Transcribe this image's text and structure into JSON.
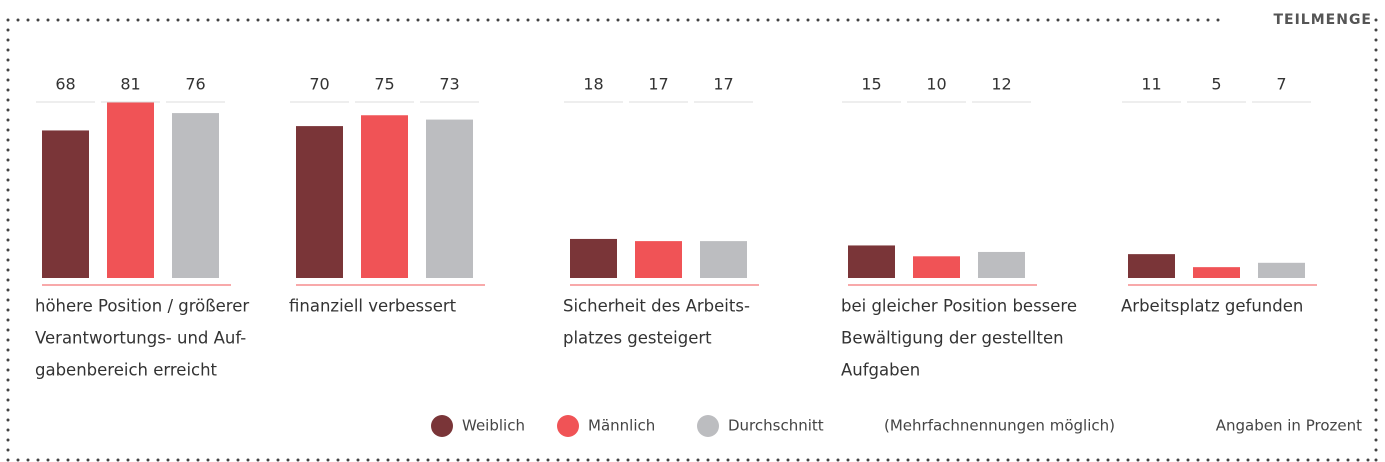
{
  "chart_data": {
    "type": "bar",
    "tag": "TEILMENGE",
    "categories": [
      [
        "höhere Position / größerer",
        "Verantwortungs- und Auf-",
        "gabenbereich erreicht"
      ],
      [
        "finanziell verbessert"
      ],
      [
        "Sicherheit des Arbeits-",
        "platzes gesteigert"
      ],
      [
        "bei gleicher Position bessere",
        "Bewältigung der gestellten",
        "Aufgaben"
      ],
      [
        "Arbeitsplatz gefunden"
      ]
    ],
    "series": [
      {
        "name": "Weiblich",
        "color": "#7a3538",
        "values": [
          68,
          70,
          18,
          15,
          11
        ]
      },
      {
        "name": "Männlich",
        "color": "#f05356",
        "values": [
          81,
          75,
          17,
          10,
          5
        ]
      },
      {
        "name": "Durchschnitt",
        "color": "#bcbdc0",
        "values": [
          76,
          73,
          17,
          12,
          7
        ]
      }
    ],
    "notes": [
      "(Mehrfachnennungen möglich)",
      "Angaben in Prozent"
    ]
  }
}
